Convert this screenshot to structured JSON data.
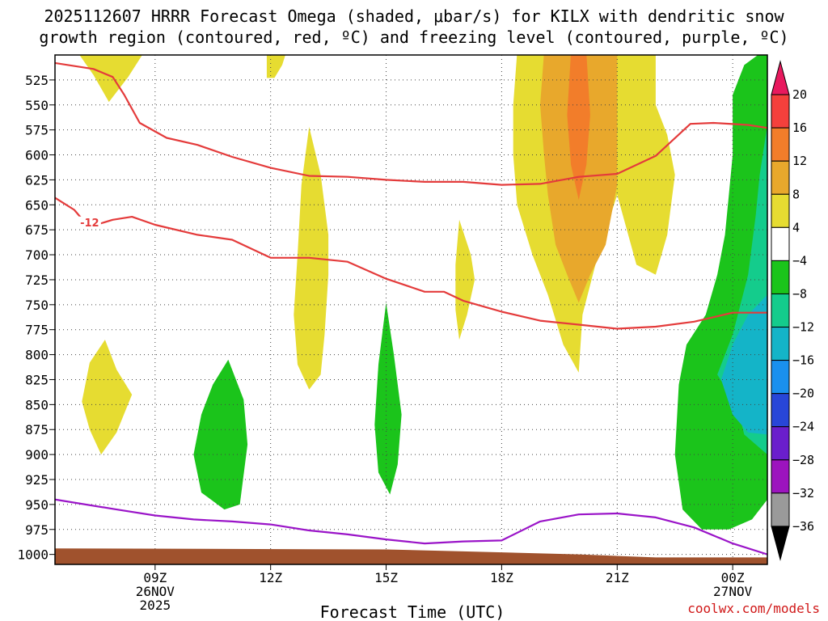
{
  "chart_data": {
    "type": "heatmap",
    "title_line1": "2025112607 HRRR Forecast Omega (shaded, μbar/s) for KILX with dendritic snow",
    "title_line2": "growth region (contoured, red, ºC) and freezing level (contoured, purple, ºC)",
    "xlabel": "Forecast Time (UTC)",
    "credit": "coolwx.com/models",
    "xlim": [
      6.4,
      24.9
    ],
    "ylim": [
      1010,
      500
    ],
    "y_ticks": [
      525,
      550,
      575,
      600,
      625,
      650,
      675,
      700,
      725,
      750,
      775,
      800,
      825,
      850,
      875,
      900,
      925,
      950,
      975,
      1000
    ],
    "x_ticks": [
      {
        "hour": 9,
        "lines": [
          "09Z",
          "26NOV",
          "2025"
        ]
      },
      {
        "hour": 12,
        "lines": [
          "12Z"
        ]
      },
      {
        "hour": 15,
        "lines": [
          "15Z"
        ]
      },
      {
        "hour": 18,
        "lines": [
          "18Z"
        ]
      },
      {
        "hour": 21,
        "lines": [
          "21Z"
        ]
      },
      {
        "hour": 24,
        "lines": [
          "00Z",
          "27NOV"
        ]
      }
    ],
    "colorbar": {
      "labels": [
        20,
        16,
        12,
        8,
        4,
        -4,
        -8,
        -12,
        -16,
        -20,
        -24,
        -28,
        -32,
        -36
      ],
      "bins": [
        {
          "color": "#e8195e",
          "range": "> 20"
        },
        {
          "color": "#f4403c",
          "range": "16 to 20"
        },
        {
          "color": "#f27d2a",
          "range": "12 to 16"
        },
        {
          "color": "#e8a82c",
          "range": "8 to 12"
        },
        {
          "color": "#e6dc31",
          "range": "4 to 8"
        },
        {
          "color": "#ffffff",
          "range": "-4 to 4"
        },
        {
          "color": "#1bc41b",
          "range": "-8 to -4"
        },
        {
          "color": "#14cc8c",
          "range": "-12 to -8"
        },
        {
          "color": "#14b4c8",
          "range": "-16 to -12"
        },
        {
          "color": "#1a90ee",
          "range": "-20 to -16"
        },
        {
          "color": "#2846d8",
          "range": "-24 to -20"
        },
        {
          "color": "#6a1ecc",
          "range": "-28 to -24"
        },
        {
          "color": "#9c14be",
          "range": "-32 to -28"
        },
        {
          "color": "#9a9a9a",
          "range": "-36 to -32"
        },
        {
          "color": "#000000",
          "range": "< -36"
        }
      ]
    },
    "shaded_regions": [
      {
        "name": "omega-pos-4-a",
        "color": "#e6dc31",
        "points": [
          [
            7.0,
            498
          ],
          [
            7.4,
            520
          ],
          [
            7.8,
            547
          ],
          [
            8.3,
            522
          ],
          [
            8.7,
            498
          ]
        ]
      },
      {
        "name": "omega-pos-4-b",
        "color": "#e6dc31",
        "points": [
          [
            11.9,
            498
          ],
          [
            11.9,
            523
          ],
          [
            12.1,
            523
          ],
          [
            12.3,
            510
          ],
          [
            12.4,
            498
          ]
        ]
      },
      {
        "name": "omega-pos-4-c",
        "color": "#e6dc31",
        "points": [
          [
            7.7,
            785
          ],
          [
            8.0,
            815
          ],
          [
            8.4,
            840
          ],
          [
            8.0,
            878
          ],
          [
            7.6,
            900
          ],
          [
            7.3,
            875
          ],
          [
            7.1,
            847
          ],
          [
            7.3,
            808
          ]
        ]
      },
      {
        "name": "omega-pos-4-d",
        "color": "#e6dc31",
        "points": [
          [
            13.0,
            572
          ],
          [
            13.3,
            620
          ],
          [
            13.5,
            680
          ],
          [
            13.5,
            720
          ],
          [
            13.4,
            780
          ],
          [
            13.3,
            820
          ],
          [
            13.0,
            835
          ],
          [
            12.7,
            810
          ],
          [
            12.6,
            760
          ],
          [
            12.7,
            700
          ],
          [
            12.8,
            630
          ]
        ]
      },
      {
        "name": "omega-pos-4-e",
        "color": "#e6dc31",
        "points": [
          [
            16.9,
            665
          ],
          [
            17.2,
            700
          ],
          [
            17.3,
            725
          ],
          [
            17.1,
            760
          ],
          [
            16.9,
            785
          ],
          [
            16.8,
            755
          ],
          [
            16.8,
            710
          ]
        ]
      },
      {
        "name": "omega-pos-4-f",
        "color": "#e6dc31",
        "points": [
          [
            18.4,
            498
          ],
          [
            22.0,
            498
          ],
          [
            22.0,
            550
          ],
          [
            22.3,
            580
          ],
          [
            22.5,
            620
          ],
          [
            22.3,
            680
          ],
          [
            22.0,
            720
          ],
          [
            21.5,
            710
          ],
          [
            21.0,
            640
          ],
          [
            20.5,
            700
          ],
          [
            20.1,
            760
          ],
          [
            20.0,
            818
          ],
          [
            19.6,
            790
          ],
          [
            19.2,
            740
          ],
          [
            18.8,
            700
          ],
          [
            18.4,
            650
          ],
          [
            18.3,
            600
          ],
          [
            18.3,
            550
          ]
        ]
      },
      {
        "name": "omega-pos-8",
        "color": "#e8a82c",
        "points": [
          [
            19.1,
            498
          ],
          [
            21.0,
            498
          ],
          [
            21.0,
            560
          ],
          [
            21.0,
            630
          ],
          [
            20.7,
            690
          ],
          [
            20.3,
            720
          ],
          [
            20.0,
            748
          ],
          [
            19.7,
            720
          ],
          [
            19.4,
            690
          ],
          [
            19.2,
            640
          ],
          [
            19.1,
            600
          ],
          [
            19.0,
            550
          ]
        ]
      },
      {
        "name": "omega-pos-12",
        "color": "#f27d2a",
        "points": [
          [
            19.8,
            498
          ],
          [
            20.2,
            498
          ],
          [
            20.3,
            560
          ],
          [
            20.2,
            610
          ],
          [
            20.0,
            645
          ],
          [
            19.8,
            610
          ],
          [
            19.7,
            560
          ]
        ]
      },
      {
        "name": "omega-neg-4-a",
        "color": "#1bc41b",
        "points": [
          [
            10.9,
            805
          ],
          [
            11.3,
            845
          ],
          [
            11.4,
            890
          ],
          [
            11.2,
            950
          ],
          [
            10.8,
            955
          ],
          [
            10.2,
            938
          ],
          [
            10.0,
            900
          ],
          [
            10.2,
            860
          ],
          [
            10.5,
            830
          ]
        ]
      },
      {
        "name": "omega-neg-4-b",
        "color": "#1bc41b",
        "points": [
          [
            15.0,
            748
          ],
          [
            15.2,
            800
          ],
          [
            15.4,
            860
          ],
          [
            15.3,
            910
          ],
          [
            15.1,
            940
          ],
          [
            14.8,
            918
          ],
          [
            14.7,
            870
          ],
          [
            14.8,
            810
          ]
        ]
      },
      {
        "name": "omega-neg-4-c",
        "color": "#1bc41b",
        "points": [
          [
            24.9,
            493
          ],
          [
            24.9,
            945
          ],
          [
            24.5,
            965
          ],
          [
            23.9,
            975
          ],
          [
            23.2,
            975
          ],
          [
            22.7,
            955
          ],
          [
            22.5,
            900
          ],
          [
            22.6,
            830
          ],
          [
            22.8,
            790
          ],
          [
            23.3,
            760
          ],
          [
            23.6,
            720
          ],
          [
            23.8,
            680
          ],
          [
            23.9,
            640
          ],
          [
            24.0,
            600
          ],
          [
            24.0,
            540
          ],
          [
            24.3,
            510
          ]
        ]
      },
      {
        "name": "omega-neg-8",
        "color": "#14cc8c",
        "points": [
          [
            24.9,
            570
          ],
          [
            24.9,
            900
          ],
          [
            24.6,
            890
          ],
          [
            24.3,
            880
          ],
          [
            24.1,
            850
          ],
          [
            23.6,
            820
          ],
          [
            24.0,
            780
          ],
          [
            24.4,
            720
          ],
          [
            24.6,
            660
          ],
          [
            24.7,
            620
          ]
        ]
      },
      {
        "name": "omega-neg-12",
        "color": "#14b4c8",
        "points": [
          [
            24.9,
            740
          ],
          [
            24.9,
            880
          ],
          [
            24.4,
            878
          ],
          [
            24.0,
            860
          ],
          [
            23.7,
            825
          ],
          [
            24.0,
            790
          ],
          [
            24.4,
            760
          ]
        ]
      }
    ],
    "contours": [
      {
        "name": "dgz-minus-12-upper",
        "label": "",
        "color": "#e43b3b",
        "points": [
          [
            6.4,
            508
          ],
          [
            7.4,
            514
          ],
          [
            7.9,
            522
          ],
          [
            8.2,
            540
          ],
          [
            8.6,
            568
          ],
          [
            9.3,
            583
          ],
          [
            10.1,
            590
          ],
          [
            11.0,
            602
          ],
          [
            12.0,
            613
          ],
          [
            13.0,
            621
          ],
          [
            14.0,
            622
          ],
          [
            15.0,
            625
          ],
          [
            16.0,
            627
          ],
          [
            17.0,
            627
          ],
          [
            18.0,
            630
          ],
          [
            19.0,
            629
          ],
          [
            20.0,
            622
          ],
          [
            21.0,
            619
          ],
          [
            22.0,
            601
          ],
          [
            22.9,
            569
          ],
          [
            23.5,
            568
          ],
          [
            24.4,
            570
          ],
          [
            24.9,
            573
          ]
        ]
      },
      {
        "name": "dgz-minus-12-lower",
        "label": "-12",
        "label_at": [
          7.3,
          669
        ],
        "color": "#e43b3b",
        "points": [
          [
            6.4,
            643
          ],
          [
            6.9,
            655
          ],
          [
            7.1,
            664
          ],
          [
            7.3,
            672
          ],
          [
            7.9,
            665
          ],
          [
            8.4,
            662
          ],
          [
            9.0,
            670
          ],
          [
            10.1,
            680
          ],
          [
            11.0,
            685
          ],
          [
            12.0,
            703
          ],
          [
            13.0,
            703
          ],
          [
            14.0,
            707
          ],
          [
            15.0,
            724
          ],
          [
            16.0,
            737
          ],
          [
            16.5,
            737
          ],
          [
            17.0,
            746
          ],
          [
            18.0,
            757
          ],
          [
            19.0,
            766
          ],
          [
            20.0,
            770
          ],
          [
            21.0,
            774
          ],
          [
            22.0,
            772
          ],
          [
            23.0,
            767
          ],
          [
            24.0,
            758
          ],
          [
            24.9,
            758
          ]
        ]
      },
      {
        "name": "freezing-level",
        "label": "",
        "color": "#9a14c8",
        "points": [
          [
            6.4,
            945
          ],
          [
            8.0,
            955
          ],
          [
            9.0,
            961
          ],
          [
            10.0,
            965
          ],
          [
            11.0,
            967
          ],
          [
            12.0,
            970
          ],
          [
            13.0,
            976
          ],
          [
            14.0,
            980
          ],
          [
            15.0,
            985
          ],
          [
            16.0,
            989
          ],
          [
            17.0,
            987
          ],
          [
            18.0,
            986
          ],
          [
            19.0,
            967
          ],
          [
            20.0,
            960
          ],
          [
            21.0,
            959
          ],
          [
            22.0,
            963
          ],
          [
            23.0,
            973
          ],
          [
            24.0,
            989
          ],
          [
            24.9,
            1000
          ]
        ]
      }
    ],
    "terrain": {
      "name": "ground-surface",
      "color": "#a0522d",
      "points": [
        [
          6.4,
          994
        ],
        [
          15.0,
          995
        ],
        [
          17.0,
          997
        ],
        [
          20.0,
          1000
        ],
        [
          22.0,
          1003
        ],
        [
          24.9,
          1003
        ]
      ]
    }
  }
}
